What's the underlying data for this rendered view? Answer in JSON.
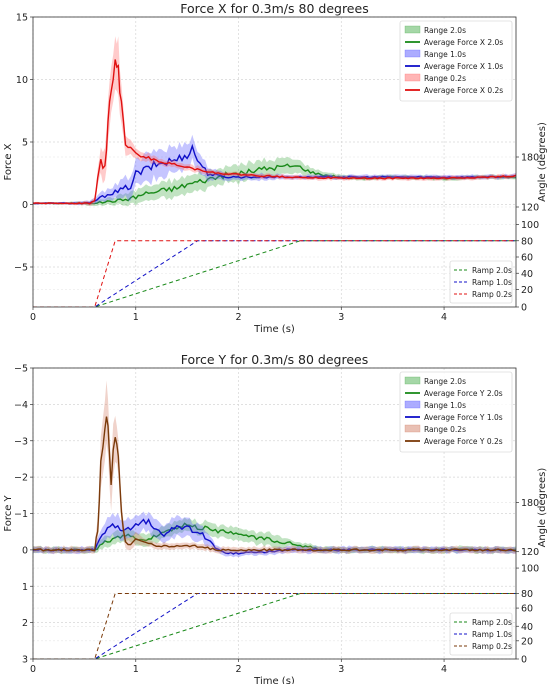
{
  "chart_data": [
    {
      "type": "line",
      "title": "Force X for 0.3m/s 80 degrees",
      "xlabel": "Time (s)",
      "ylabel": "Force X",
      "ylabel_right": "Angle (degrees)",
      "xlim": [
        0,
        4.7
      ],
      "ylim": [
        -8.2,
        15
      ],
      "x_ticks": [
        0,
        1,
        2,
        3,
        4
      ],
      "y_ticks": [
        15,
        10,
        5,
        0,
        -5
      ],
      "right_ticks": [
        {
          "label": "180",
          "y": 3.8
        },
        {
          "label": "120",
          "y": -0.2
        },
        {
          "label": "100",
          "y": -1.6
        },
        {
          "label": "80",
          "y": -2.9
        },
        {
          "label": "60",
          "y": -4.2
        },
        {
          "label": "40",
          "y": -5.5
        },
        {
          "label": "20",
          "y": -6.8
        },
        {
          "label": "0",
          "y": -8.2
        }
      ],
      "grid": true,
      "legend_force_position": "top-right",
      "legend_ramp_position": "lower-right",
      "legend_force": [
        {
          "label": "Range 2.0s",
          "kind": "band",
          "color": "#4caf50"
        },
        {
          "label": "Average Force X 2.0s",
          "kind": "line",
          "color": "#1a8a1a"
        },
        {
          "label": "Range 1.0s",
          "kind": "band",
          "color": "#5a5aff"
        },
        {
          "label": "Average Force X 1.0s",
          "kind": "line",
          "color": "#1010c8"
        },
        {
          "label": "Range 0.2s",
          "kind": "band",
          "color": "#ff6b6b"
        },
        {
          "label": "Average Force X 0.2s",
          "kind": "line",
          "color": "#e01010"
        }
      ],
      "legend_ramp": [
        {
          "label": "Ramp 2.0s",
          "color": "#1a8a1a"
        },
        {
          "label": "Ramp 1.0s",
          "color": "#1010c8"
        },
        {
          "label": "Ramp 0.2s",
          "color": "#e01010"
        }
      ],
      "series": [
        {
          "name": "Average Force X 2.0s",
          "color": "#1a8a1a",
          "band_color": "#4caf50",
          "x": [
            0,
            0.3,
            0.55,
            0.7,
            0.8,
            0.9,
            1.0,
            1.1,
            1.2,
            1.3,
            1.4,
            1.5,
            1.6,
            1.7,
            1.8,
            1.9,
            2.0,
            2.1,
            2.2,
            2.3,
            2.4,
            2.5,
            2.6,
            2.7,
            2.8,
            2.9,
            3.0,
            3.2,
            3.5,
            4.0,
            4.5,
            4.7
          ],
          "y": [
            0.1,
            0.1,
            0.1,
            0.2,
            0.3,
            0.4,
            0.6,
            0.9,
            1.0,
            1.2,
            1.3,
            1.6,
            1.8,
            2.0,
            2.2,
            2.4,
            2.5,
            2.6,
            2.8,
            2.9,
            3.0,
            3.1,
            3.0,
            2.6,
            2.4,
            2.3,
            2.2,
            2.1,
            2.2,
            2.1,
            2.2,
            2.2
          ],
          "spread": [
            0.1,
            0.1,
            0.2,
            0.3,
            0.4,
            0.5,
            0.6,
            0.7,
            0.7,
            0.8,
            0.8,
            0.8,
            0.8,
            0.8,
            0.8,
            0.8,
            0.8,
            0.8,
            0.8,
            0.8,
            0.8,
            0.7,
            0.6,
            0.4,
            0.3,
            0.3,
            0.2,
            0.2,
            0.2,
            0.2,
            0.2,
            0.2
          ]
        },
        {
          "name": "Average Force X 1.0s",
          "color": "#1010c8",
          "band_color": "#5a5aff",
          "x": [
            0,
            0.3,
            0.55,
            0.65,
            0.75,
            0.85,
            0.95,
            1.0,
            1.1,
            1.2,
            1.3,
            1.4,
            1.5,
            1.55,
            1.6,
            1.7,
            1.8,
            1.9,
            2.0,
            2.2,
            2.5,
            3.0,
            3.5,
            4.0,
            4.5,
            4.7
          ],
          "y": [
            0.1,
            0.1,
            0.1,
            0.5,
            0.9,
            1.1,
            1.5,
            2.4,
            2.8,
            3.2,
            3.4,
            3.6,
            4.0,
            4.5,
            3.6,
            2.5,
            2.3,
            2.2,
            2.2,
            2.2,
            2.2,
            2.2,
            2.2,
            2.2,
            2.2,
            2.3
          ],
          "spread": [
            0.1,
            0.1,
            0.2,
            0.4,
            0.6,
            0.8,
            1.0,
            1.2,
            1.3,
            1.3,
            1.3,
            1.2,
            1.2,
            1.2,
            1.0,
            0.6,
            0.4,
            0.3,
            0.3,
            0.3,
            0.2,
            0.2,
            0.2,
            0.2,
            0.2,
            0.2
          ]
        },
        {
          "name": "Average Force X 0.2s",
          "color": "#e01010",
          "band_color": "#ff6b6b",
          "x": [
            0,
            0.3,
            0.55,
            0.6,
            0.63,
            0.66,
            0.7,
            0.73,
            0.76,
            0.8,
            0.83,
            0.86,
            0.9,
            0.95,
            1.0,
            1.1,
            1.2,
            1.3,
            1.4,
            1.5,
            1.6,
            1.8,
            2.0,
            2.2,
            2.5,
            3.0,
            3.5,
            4.0,
            4.5,
            4.7
          ],
          "y": [
            0.1,
            0.1,
            0.1,
            0.3,
            2.0,
            3.5,
            3.0,
            6.5,
            9.5,
            11.8,
            11.0,
            8.0,
            5.0,
            4.4,
            4.0,
            3.8,
            3.5,
            3.3,
            3.2,
            3.0,
            2.8,
            2.5,
            2.4,
            2.3,
            2.2,
            2.1,
            2.1,
            2.1,
            2.2,
            2.3
          ],
          "spread": [
            0.1,
            0.1,
            0.2,
            0.3,
            0.8,
            1.2,
            1.5,
            2.0,
            2.3,
            2.5,
            2.5,
            1.8,
            1.0,
            0.7,
            0.5,
            0.4,
            0.3,
            0.3,
            0.3,
            0.3,
            0.3,
            0.2,
            0.2,
            0.2,
            0.2,
            0.2,
            0.2,
            0.2,
            0.2,
            0.2
          ]
        }
      ],
      "ramps": [
        {
          "name": "Ramp 2.0s",
          "color": "#1a8a1a",
          "x": [
            0,
            0.6,
            2.6,
            4.7
          ],
          "angle": [
            0,
            0,
            80,
            80
          ]
        },
        {
          "name": "Ramp 1.0s",
          "color": "#1010c8",
          "x": [
            0,
            0.6,
            1.6,
            4.7
          ],
          "angle": [
            0,
            0,
            80,
            80
          ]
        },
        {
          "name": "Ramp 0.2s",
          "color": "#e01010",
          "x": [
            0,
            0.6,
            0.8,
            4.7
          ],
          "angle": [
            0,
            0,
            80,
            80
          ]
        }
      ]
    },
    {
      "type": "line",
      "title": "Force Y for 0.3m/s 80 degrees",
      "xlabel": "Time (s)",
      "ylabel": "Force Y",
      "ylabel_right": "Angle (degrees)",
      "xlim": [
        0,
        4.7
      ],
      "ylim": [
        3.0,
        -5.0
      ],
      "y_inverted": true,
      "x_ticks": [
        0,
        1,
        2,
        3,
        4
      ],
      "y_ticks": [
        -5,
        -4,
        -3,
        -2,
        -1,
        0,
        1,
        2,
        3
      ],
      "right_ticks": [
        {
          "label": "180",
          "y": -1.3
        },
        {
          "label": "120",
          "y": 0.05
        },
        {
          "label": "100",
          "y": 0.5
        },
        {
          "label": "80",
          "y": 1.2
        },
        {
          "label": "60",
          "y": 1.6
        },
        {
          "label": "40",
          "y": 2.1
        },
        {
          "label": "20",
          "y": 2.5
        },
        {
          "label": "0",
          "y": 3.0
        }
      ],
      "grid": true,
      "legend_force_position": "top-right",
      "legend_ramp_position": "lower-right",
      "legend_force": [
        {
          "label": "Range 2.0s",
          "kind": "band",
          "color": "#4caf50"
        },
        {
          "label": "Average Force Y 2.0s",
          "kind": "line",
          "color": "#1a8a1a"
        },
        {
          "label": "Range 1.0s",
          "kind": "band",
          "color": "#5a5aff"
        },
        {
          "label": "Average Force Y 1.0s",
          "kind": "line",
          "color": "#1010c8"
        },
        {
          "label": "Range 0.2s",
          "kind": "band",
          "color": "#d4826a"
        },
        {
          "label": "Average Force Y 0.2s",
          "kind": "line",
          "color": "#7a3a0a"
        }
      ],
      "legend_ramp": [
        {
          "label": "Ramp 2.0s",
          "color": "#1a8a1a"
        },
        {
          "label": "Ramp 1.0s",
          "color": "#1010c8"
        },
        {
          "label": "Ramp 0.2s",
          "color": "#7a3a0a"
        }
      ],
      "series": [
        {
          "name": "Average Force Y 2.0s",
          "color": "#1a8a1a",
          "band_color": "#4caf50",
          "x": [
            0,
            0.3,
            0.6,
            0.7,
            0.8,
            0.9,
            1.0,
            1.1,
            1.2,
            1.3,
            1.4,
            1.5,
            1.6,
            1.7,
            1.8,
            1.9,
            2.0,
            2.1,
            2.2,
            2.3,
            2.4,
            2.5,
            2.6,
            2.7,
            2.8,
            3.0,
            3.5,
            4.0,
            4.5,
            4.7
          ],
          "y": [
            0.0,
            0.0,
            0.0,
            -0.2,
            -0.3,
            -0.4,
            -0.3,
            -0.3,
            -0.4,
            -0.5,
            -0.6,
            -0.7,
            -0.6,
            -0.6,
            -0.5,
            -0.5,
            -0.4,
            -0.4,
            -0.3,
            -0.3,
            -0.2,
            -0.2,
            -0.1,
            -0.1,
            0.0,
            0.0,
            0.0,
            0.0,
            0.0,
            0.0
          ],
          "spread": [
            0.1,
            0.1,
            0.1,
            0.2,
            0.2,
            0.2,
            0.2,
            0.2,
            0.2,
            0.2,
            0.2,
            0.2,
            0.2,
            0.2,
            0.2,
            0.2,
            0.2,
            0.2,
            0.2,
            0.2,
            0.2,
            0.1,
            0.1,
            0.1,
            0.1,
            0.1,
            0.1,
            0.1,
            0.1,
            0.1
          ]
        },
        {
          "name": "Average Force Y 1.0s",
          "color": "#1010c8",
          "band_color": "#5a5aff",
          "x": [
            0,
            0.3,
            0.6,
            0.7,
            0.8,
            0.9,
            1.0,
            1.1,
            1.2,
            1.3,
            1.4,
            1.5,
            1.6,
            1.7,
            1.8,
            1.9,
            2.0,
            2.5,
            3.0,
            3.5,
            4.0,
            4.5,
            4.7
          ],
          "y": [
            0.0,
            0.0,
            0.0,
            -0.5,
            -0.7,
            -0.5,
            -0.7,
            -0.8,
            -0.6,
            -0.4,
            -0.7,
            -0.6,
            -0.5,
            -0.3,
            0.0,
            0.1,
            0.1,
            0.0,
            0.0,
            0.0,
            0.0,
            0.0,
            0.0
          ],
          "spread": [
            0.1,
            0.1,
            0.1,
            0.3,
            0.4,
            0.3,
            0.3,
            0.3,
            0.3,
            0.3,
            0.3,
            0.3,
            0.3,
            0.2,
            0.1,
            0.1,
            0.1,
            0.1,
            0.1,
            0.1,
            0.1,
            0.1,
            0.1
          ]
        },
        {
          "name": "Average Force Y 0.2s",
          "color": "#7a3a0a",
          "band_color": "#d4826a",
          "x": [
            0,
            0.3,
            0.6,
            0.63,
            0.66,
            0.7,
            0.73,
            0.76,
            0.8,
            0.83,
            0.86,
            0.9,
            0.95,
            1.0,
            1.1,
            1.2,
            1.4,
            1.6,
            1.8,
            2.0,
            2.5,
            3.0,
            3.5,
            4.0,
            4.5,
            4.7
          ],
          "y": [
            0.0,
            0.0,
            0.0,
            -0.6,
            -2.4,
            -3.5,
            -3.5,
            -2.0,
            -3.1,
            -2.5,
            -1.0,
            -0.2,
            -0.1,
            -0.3,
            -0.2,
            -0.1,
            -0.1,
            -0.1,
            0.0,
            0.0,
            0.0,
            0.0,
            0.0,
            0.0,
            0.0,
            0.0
          ],
          "spread": [
            0.1,
            0.1,
            0.1,
            0.4,
            0.8,
            1.0,
            1.0,
            0.8,
            0.7,
            0.6,
            0.4,
            0.2,
            0.2,
            0.2,
            0.1,
            0.1,
            0.1,
            0.1,
            0.1,
            0.1,
            0.1,
            0.1,
            0.1,
            0.1,
            0.1,
            0.1
          ]
        }
      ],
      "ramps": [
        {
          "name": "Ramp 2.0s",
          "color": "#1a8a1a",
          "x": [
            0,
            0.6,
            2.6,
            4.7
          ],
          "angle": [
            0,
            0,
            80,
            80
          ]
        },
        {
          "name": "Ramp 1.0s",
          "color": "#1010c8",
          "x": [
            0,
            0.6,
            1.6,
            4.7
          ],
          "angle": [
            0,
            0,
            80,
            80
          ]
        },
        {
          "name": "Ramp 0.2s",
          "color": "#7a3a0a",
          "x": [
            0,
            0.6,
            0.8,
            4.7
          ],
          "angle": [
            0,
            0,
            80,
            80
          ]
        }
      ]
    }
  ]
}
